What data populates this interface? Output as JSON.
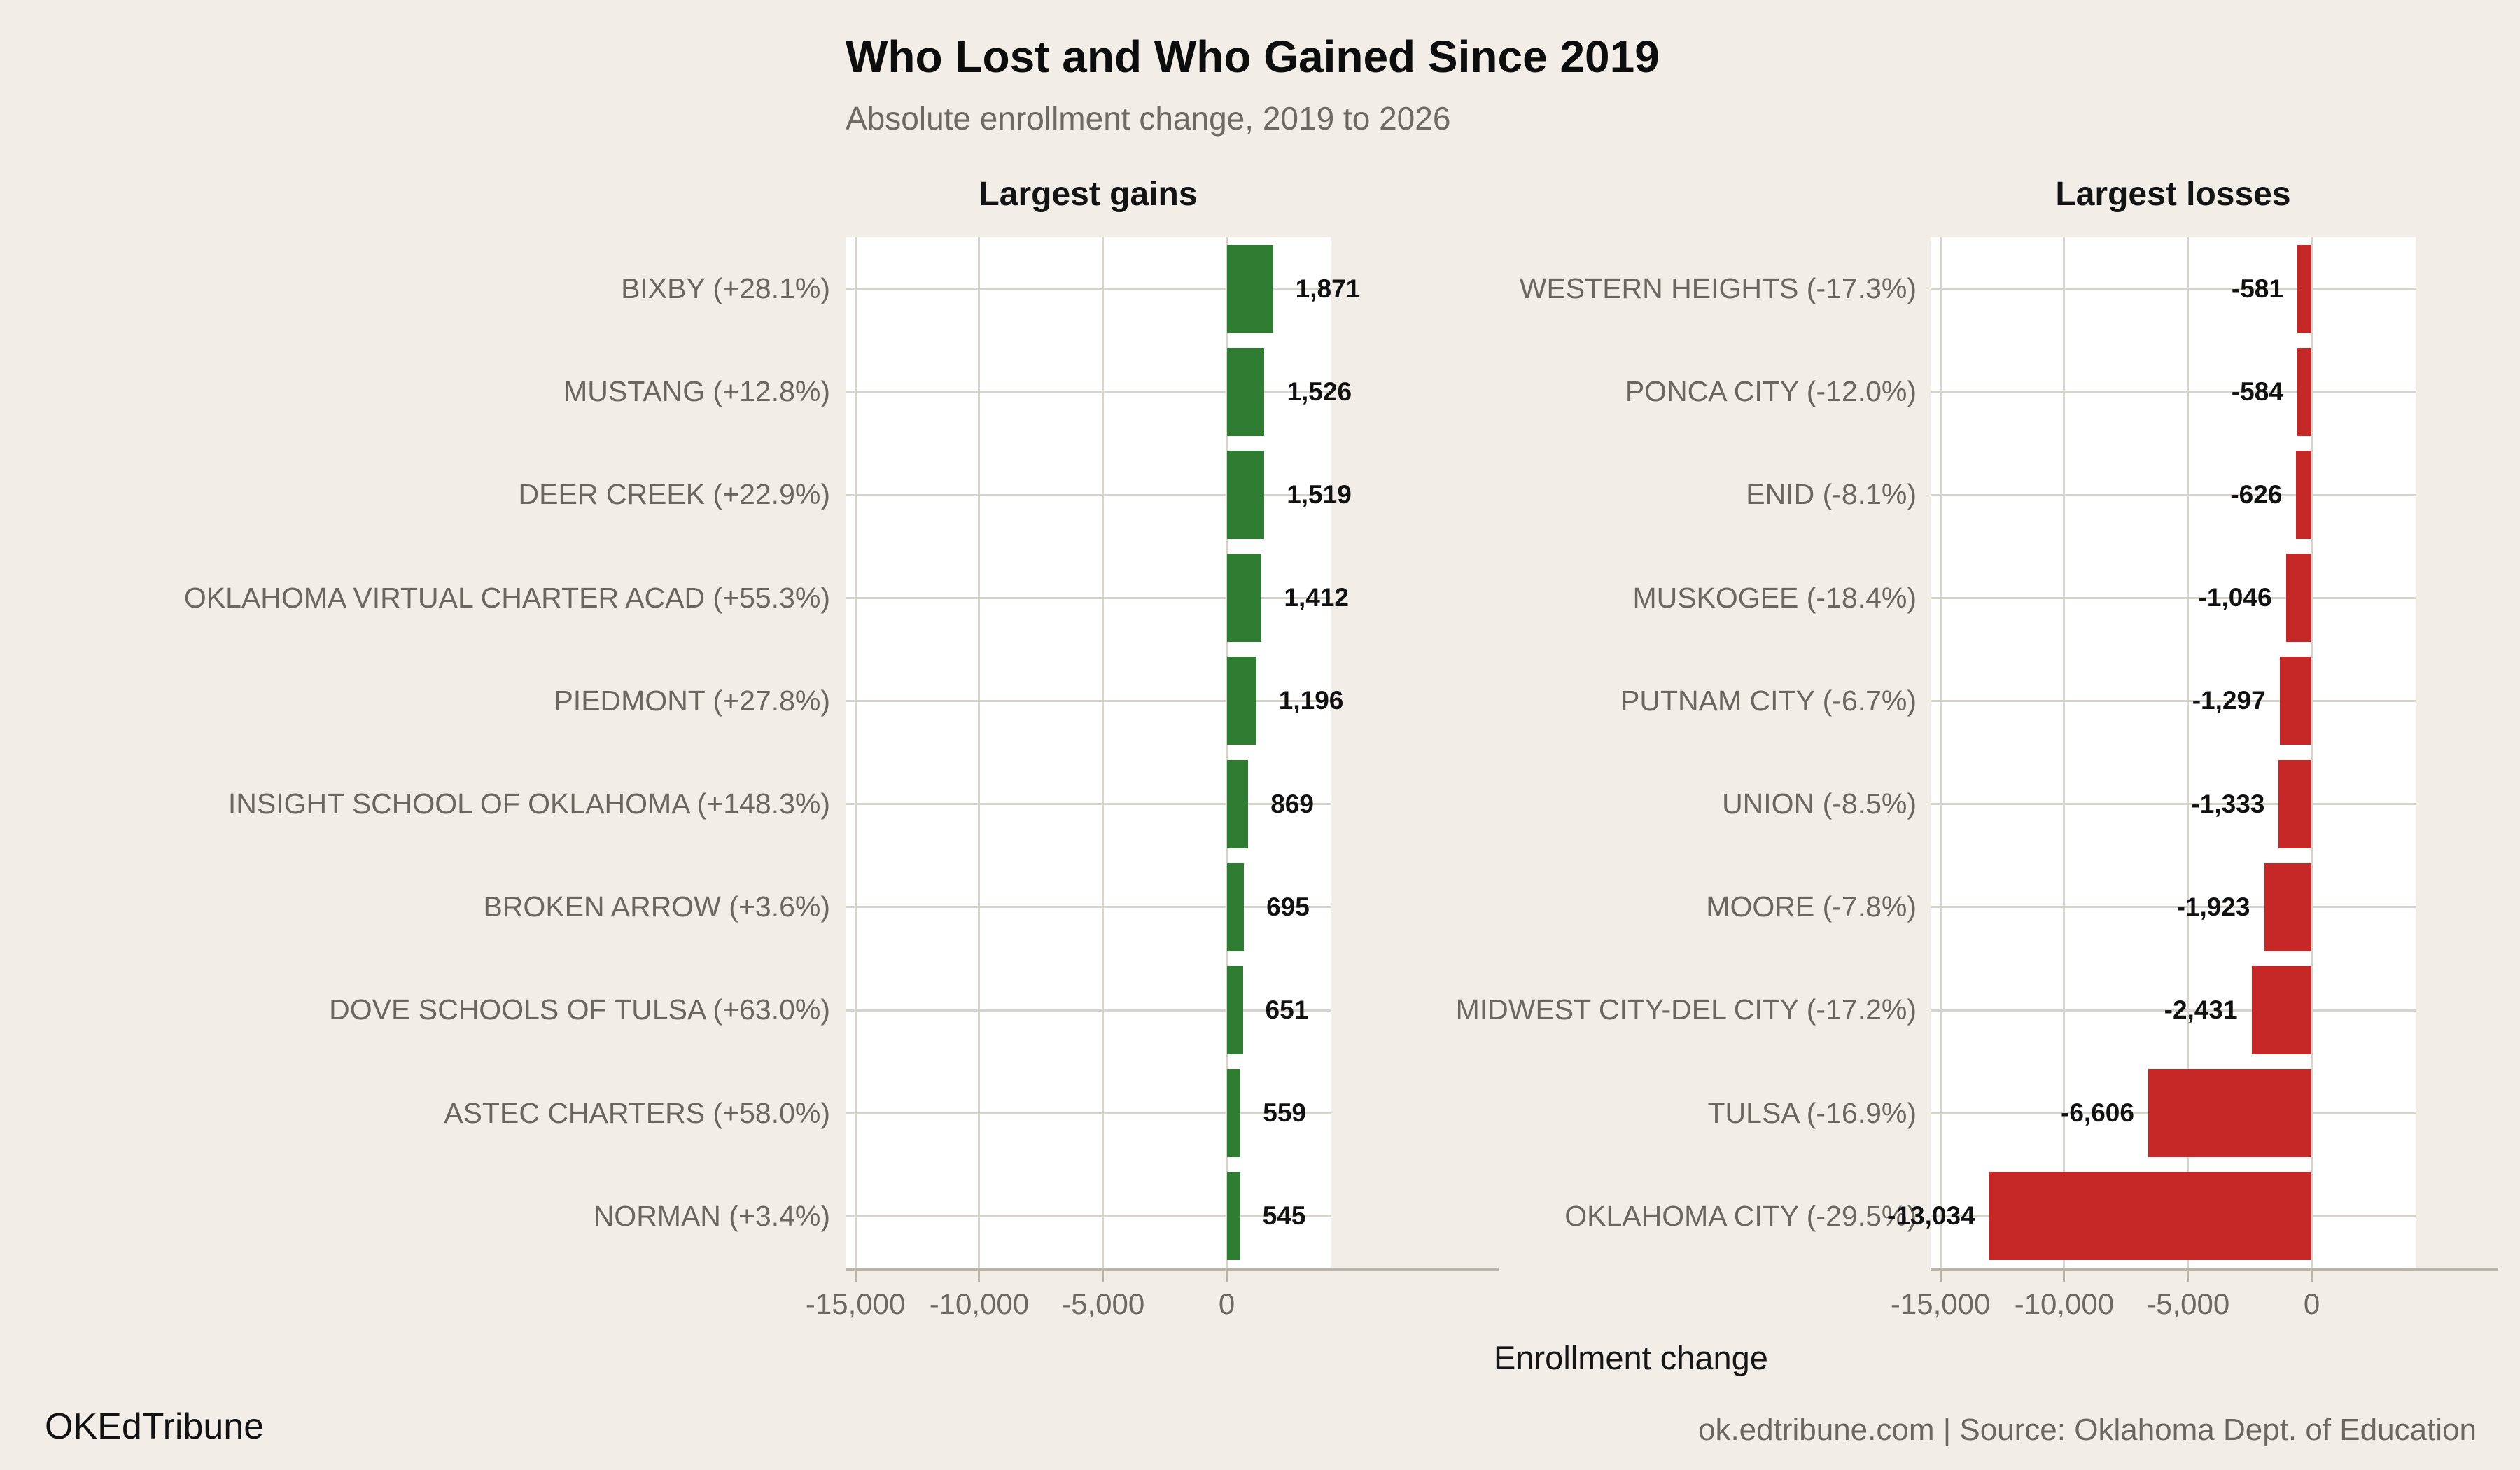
{
  "title": "Who Lost and Who Gained Since 2019",
  "subtitle": "Absolute enrollment change, 2019 to 2026",
  "footer": {
    "left": "OKEdTribune",
    "right": "ok.edtribune.com | Source: Oklahoma Dept. of Education"
  },
  "colors": {
    "background": "#f2eee7",
    "plot_background": "#ffffff",
    "gridline": "#d7d2ca",
    "axis_line": "#b9b3a9",
    "gain": "#2f7d32",
    "loss": "#c62828",
    "muted_text": "#6b675f",
    "dark_text": "#141414"
  },
  "chart_data": {
    "type": "bar",
    "orientation": "horizontal",
    "title": "Who Lost and Who Gained Since 2019",
    "subtitle": "Absolute enrollment change, 2019 to 2026",
    "xlabel": "Enrollment change",
    "x_domain": [
      -15400,
      4200
    ],
    "x_ticks": [
      -15000,
      -10000,
      -5000,
      0
    ],
    "x_tick_labels": [
      "-15,000",
      "-10,000",
      "-5,000",
      "0"
    ],
    "grid": true,
    "panels": [
      {
        "title": "Largest gains",
        "color": "#2f7d32",
        "rows": [
          {
            "label": "BIXBY (+28.1%)",
            "value": 1871,
            "value_label": "1,871"
          },
          {
            "label": "MUSTANG (+12.8%)",
            "value": 1526,
            "value_label": "1,526"
          },
          {
            "label": "DEER CREEK (+22.9%)",
            "value": 1519,
            "value_label": "1,519"
          },
          {
            "label": "OKLAHOMA VIRTUAL CHARTER ACAD (+55.3%)",
            "value": 1412,
            "value_label": "1,412"
          },
          {
            "label": "PIEDMONT (+27.8%)",
            "value": 1196,
            "value_label": "1,196"
          },
          {
            "label": "INSIGHT SCHOOL OF OKLAHOMA (+148.3%)",
            "value": 869,
            "value_label": "869"
          },
          {
            "label": "BROKEN ARROW (+3.6%)",
            "value": 695,
            "value_label": "695"
          },
          {
            "label": "DOVE SCHOOLS OF TULSA (+63.0%)",
            "value": 651,
            "value_label": "651"
          },
          {
            "label": "ASTEC CHARTERS (+58.0%)",
            "value": 559,
            "value_label": "559"
          },
          {
            "label": "NORMAN (+3.4%)",
            "value": 545,
            "value_label": "545"
          }
        ]
      },
      {
        "title": "Largest losses",
        "color": "#c62828",
        "rows": [
          {
            "label": "WESTERN HEIGHTS (-17.3%)",
            "value": -581,
            "value_label": "-581"
          },
          {
            "label": "PONCA CITY (-12.0%)",
            "value": -584,
            "value_label": "-584"
          },
          {
            "label": "ENID (-8.1%)",
            "value": -626,
            "value_label": "-626"
          },
          {
            "label": "MUSKOGEE (-18.4%)",
            "value": -1046,
            "value_label": "-1,046"
          },
          {
            "label": "PUTNAM CITY (-6.7%)",
            "value": -1297,
            "value_label": "-1,297"
          },
          {
            "label": "UNION (-8.5%)",
            "value": -1333,
            "value_label": "-1,333"
          },
          {
            "label": "MOORE (-7.8%)",
            "value": -1923,
            "value_label": "-1,923"
          },
          {
            "label": "MIDWEST CITY-DEL CITY (-17.2%)",
            "value": -2431,
            "value_label": "-2,431"
          },
          {
            "label": "TULSA (-16.9%)",
            "value": -6606,
            "value_label": "-6,606"
          },
          {
            "label": "OKLAHOMA CITY (-29.5%)",
            "value": -13034,
            "value_label": "-13,034"
          }
        ]
      }
    ]
  }
}
